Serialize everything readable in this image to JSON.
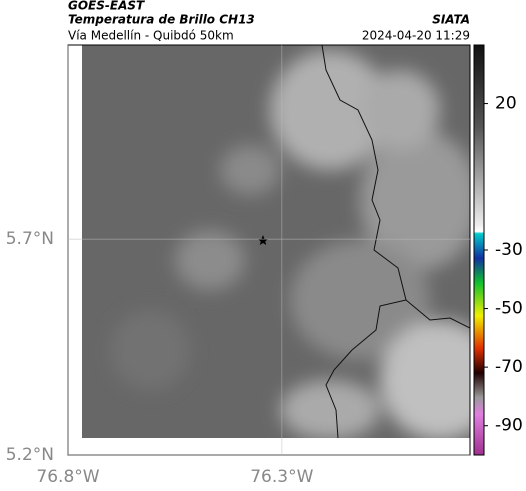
{
  "header": {
    "satellite": "GOES-EAST",
    "product": "Temperatura de Brillo CH13",
    "region": "Vía Medellín - Quibdó 50km",
    "source": "SIATA",
    "datetime": "2024-04-20 11:29"
  },
  "map": {
    "xlim": [
      -76.8,
      -75.86
    ],
    "ylim": [
      5.2,
      6.15
    ],
    "xticks": [
      {
        "value": -76.8,
        "label": "76.8°W"
      },
      {
        "value": -76.3,
        "label": "76.3°W"
      }
    ],
    "yticks": [
      {
        "value": 5.7,
        "label": "5.7°N"
      },
      {
        "value": 5.2,
        "label": "5.2°N"
      }
    ],
    "grid": true
  },
  "colorbar": {
    "clim": [
      -100,
      40
    ],
    "ticks": [
      20,
      -30,
      -50,
      -70,
      -90
    ]
  }
}
